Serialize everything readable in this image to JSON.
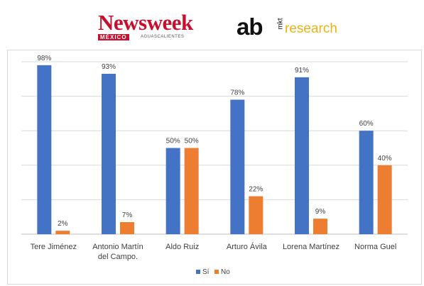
{
  "logos": {
    "newsweek": "Newsweek",
    "newsweek_edition": "MÉXICO",
    "newsweek_city": "AGUASCALIENTES",
    "ab_text": "ab",
    "ab_mkt": "mkt",
    "ab_research": "research"
  },
  "chart_data": {
    "type": "bar",
    "categories": [
      "Tere Jiménez",
      "Antonio Martín\ndel Campo.",
      "Aldo Ruiz",
      "Arturo Ávila",
      "Lorena Martínez",
      "Norma Guel"
    ],
    "series": [
      {
        "name": "Sí",
        "color": "#4472c4",
        "values": [
          98,
          93,
          50,
          78,
          91,
          60
        ],
        "labels": [
          "98%",
          "93%",
          "50%",
          "78%",
          "91%",
          "60%"
        ]
      },
      {
        "name": "No",
        "color": "#ed7d31",
        "values": [
          2,
          7,
          50,
          22,
          9,
          40
        ],
        "labels": [
          "2%",
          "7%",
          "50%",
          "22%",
          "9%",
          "40%"
        ]
      }
    ],
    "ylim": [
      0,
      100
    ],
    "grid": true,
    "legend": "bottom",
    "title": "",
    "xlabel": "",
    "ylabel": ""
  }
}
